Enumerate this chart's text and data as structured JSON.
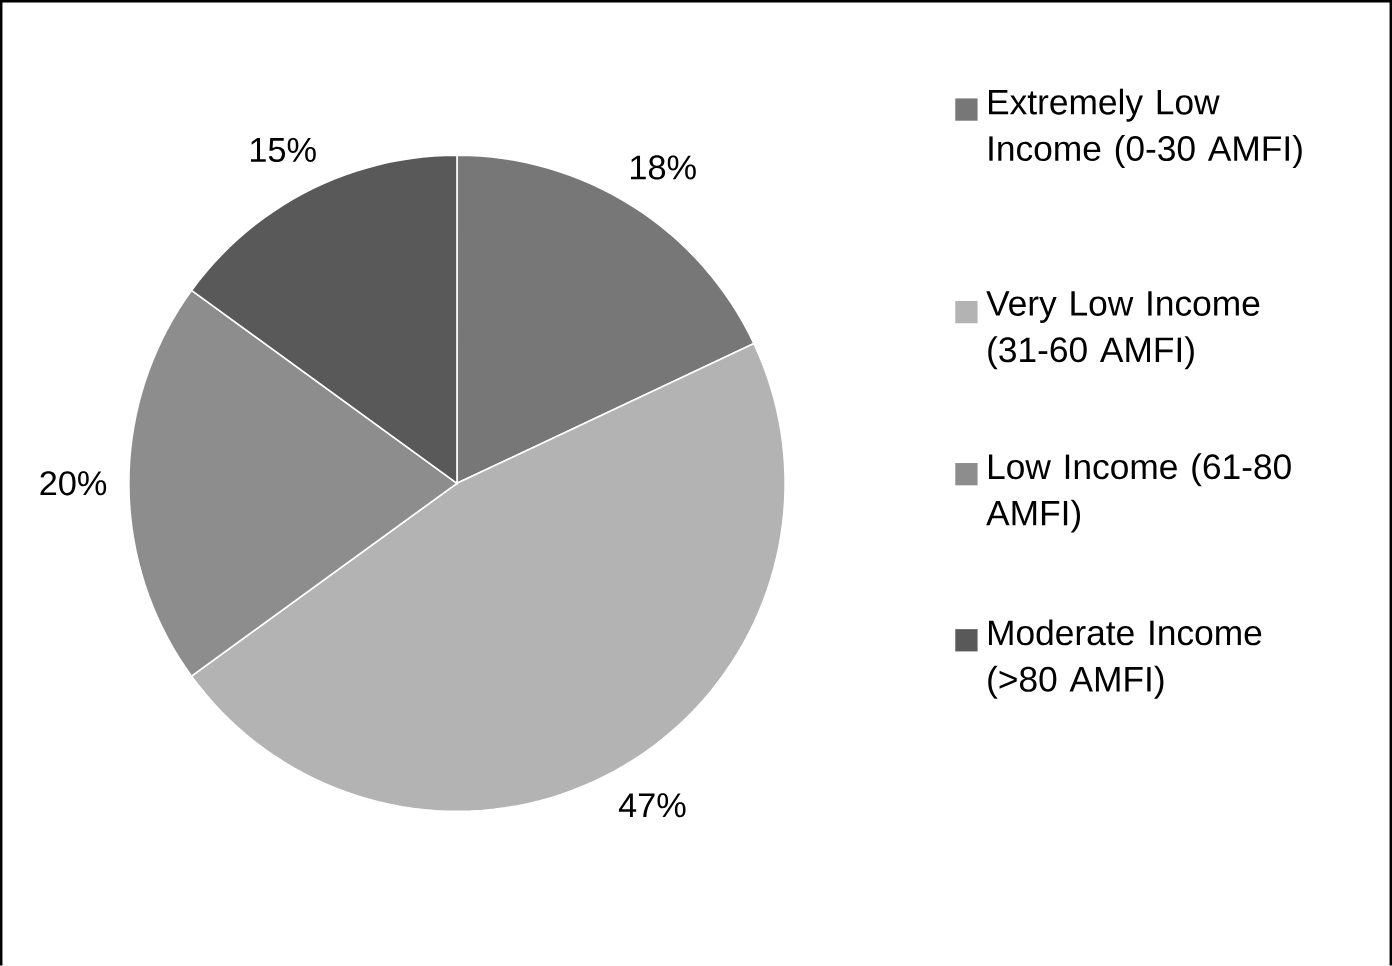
{
  "chart_data": {
    "type": "pie",
    "categories": [
      "Extremely Low Income (0-30 AMFI)",
      "Very Low Income (31-60 AMFI)",
      "Low Income (61-80 AMFI)",
      "Moderate Income (>80 AMFI)"
    ],
    "values": [
      18,
      47,
      20,
      15
    ],
    "value_labels": [
      "18%",
      "47%",
      "20%",
      "15%"
    ],
    "colors": [
      "#777777",
      "#b3b3b3",
      "#8d8d8d",
      "#595959"
    ],
    "legend": "right"
  }
}
